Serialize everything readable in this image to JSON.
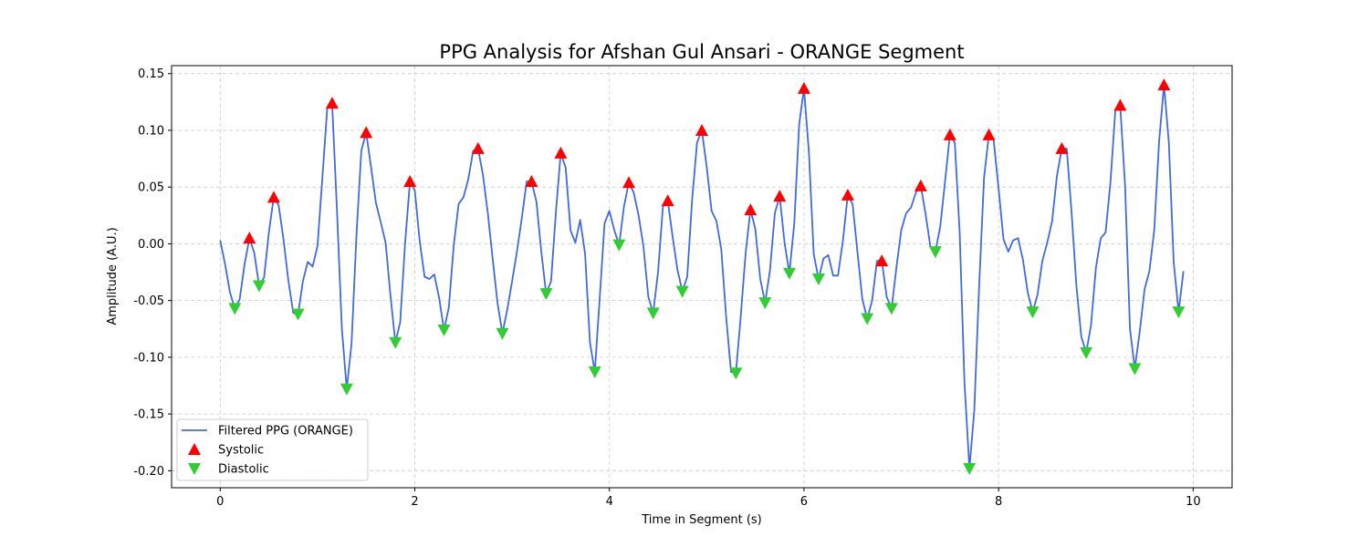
{
  "chart_data": {
    "type": "line",
    "title": "PPG Analysis for Afshan Gul Ansari - ORANGE Segment",
    "xlabel": "Time in Segment (s)",
    "ylabel": "Amplitude (A.U.)",
    "xlim": [
      -0.5,
      10.4
    ],
    "ylim": [
      -0.215,
      0.157
    ],
    "xticks": [
      0,
      2,
      4,
      6,
      8,
      10
    ],
    "yticks": [
      -0.2,
      -0.15,
      -0.1,
      -0.05,
      0.0,
      0.05,
      0.1,
      0.15
    ],
    "grid": true,
    "legend_position": "lower-left",
    "series": [
      {
        "name": "Filtered PPG (ORANGE)",
        "kind": "line",
        "color": "#4169e1",
        "x": [
          0.0,
          0.05,
          0.1,
          0.15,
          0.2,
          0.25,
          0.3,
          0.35,
          0.4,
          0.45,
          0.5,
          0.55,
          0.6,
          0.65,
          0.7,
          0.75,
          0.8,
          0.85,
          0.9,
          0.95,
          1.0,
          1.05,
          1.1,
          1.15,
          1.2,
          1.25,
          1.3,
          1.35,
          1.4,
          1.45,
          1.5,
          1.55,
          1.6,
          1.65,
          1.7,
          1.75,
          1.8,
          1.85,
          1.9,
          1.95,
          2.0,
          2.05,
          2.1,
          2.15,
          2.2,
          2.25,
          2.3,
          2.35,
          2.4,
          2.45,
          2.5,
          2.55,
          2.6,
          2.65,
          2.7,
          2.75,
          2.8,
          2.85,
          2.9,
          2.95,
          3.0,
          3.05,
          3.1,
          3.15,
          3.2,
          3.25,
          3.3,
          3.35,
          3.4,
          3.45,
          3.5,
          3.55,
          3.6,
          3.65,
          3.7,
          3.75,
          3.8,
          3.85,
          3.9,
          3.95,
          4.0,
          4.05,
          4.1,
          4.15,
          4.2,
          4.25,
          4.3,
          4.35,
          4.4,
          4.45,
          4.5,
          4.55,
          4.6,
          4.65,
          4.7,
          4.75,
          4.8,
          4.85,
          4.9,
          4.95,
          5.0,
          5.05,
          5.1,
          5.15,
          5.2,
          5.25,
          5.3,
          5.35,
          5.4,
          5.45,
          5.5,
          5.55,
          5.6,
          5.65,
          5.7,
          5.75,
          5.8,
          5.85,
          5.9,
          5.95,
          6.0,
          6.05,
          6.1,
          6.15,
          6.2,
          6.25,
          6.3,
          6.35,
          6.4,
          6.45,
          6.5,
          6.55,
          6.6,
          6.65,
          6.7,
          6.75,
          6.8,
          6.85,
          6.9,
          6.95,
          7.0,
          7.05,
          7.1,
          7.15,
          7.2,
          7.25,
          7.3,
          7.35,
          7.4,
          7.45,
          7.5,
          7.55,
          7.6,
          7.65,
          7.7,
          7.75,
          7.8,
          7.85,
          7.9,
          7.95,
          8.0,
          8.05,
          8.1,
          8.15,
          8.2,
          8.25,
          8.3,
          8.35,
          8.4,
          8.45,
          8.5,
          8.55,
          8.6,
          8.65,
          8.7,
          8.75,
          8.8,
          8.85,
          8.9,
          8.95,
          9.0,
          9.05,
          9.1,
          9.15,
          9.2,
          9.25,
          9.3,
          9.35,
          9.4,
          9.45,
          9.5,
          9.55,
          9.6,
          9.65,
          9.7,
          9.75,
          9.8,
          9.85,
          9.9
        ],
        "y": [
          0.003,
          -0.018,
          -0.043,
          -0.057,
          -0.049,
          -0.018,
          0.005,
          -0.008,
          -0.037,
          -0.03,
          0.01,
          0.041,
          0.034,
          0.004,
          -0.032,
          -0.061,
          -0.062,
          -0.033,
          -0.016,
          -0.02,
          -0.002,
          0.058,
          0.12,
          0.124,
          0.03,
          -0.075,
          -0.128,
          -0.088,
          0.008,
          0.082,
          0.098,
          0.068,
          0.036,
          0.019,
          0.001,
          -0.046,
          -0.087,
          -0.069,
          0.001,
          0.055,
          0.047,
          0.003,
          -0.029,
          -0.031,
          -0.027,
          -0.048,
          -0.076,
          -0.056,
          -0.001,
          0.035,
          0.041,
          0.057,
          0.082,
          0.084,
          0.061,
          0.027,
          -0.013,
          -0.052,
          -0.079,
          -0.058,
          -0.033,
          -0.007,
          0.023,
          0.055,
          0.055,
          0.037,
          -0.007,
          -0.044,
          -0.033,
          0.028,
          0.08,
          0.067,
          0.012,
          0.001,
          0.021,
          -0.009,
          -0.087,
          -0.113,
          -0.048,
          0.018,
          0.029,
          0.012,
          -0.001,
          0.033,
          0.054,
          0.045,
          0.025,
          -0.002,
          -0.047,
          -0.061,
          -0.025,
          0.033,
          0.038,
          0.006,
          -0.023,
          -0.042,
          -0.029,
          0.038,
          0.089,
          0.1,
          0.068,
          0.029,
          0.02,
          -0.005,
          -0.065,
          -0.113,
          -0.114,
          -0.064,
          -0.008,
          0.03,
          0.013,
          -0.031,
          -0.052,
          -0.024,
          0.027,
          0.042,
          0.001,
          -0.026,
          0.018,
          0.105,
          0.137,
          0.081,
          -0.009,
          -0.031,
          -0.013,
          -0.01,
          -0.028,
          -0.028,
          0.003,
          0.043,
          0.035,
          -0.008,
          -0.049,
          -0.066,
          -0.05,
          -0.015,
          -0.015,
          -0.047,
          -0.057,
          -0.021,
          0.012,
          0.027,
          0.032,
          0.045,
          0.051,
          0.026,
          -0.003,
          -0.007,
          0.015,
          0.055,
          0.096,
          0.089,
          0.01,
          -0.123,
          -0.198,
          -0.147,
          -0.038,
          0.058,
          0.096,
          0.091,
          0.049,
          0.004,
          -0.007,
          0.003,
          0.005,
          -0.014,
          -0.043,
          -0.06,
          -0.045,
          -0.015,
          0.001,
          0.02,
          0.06,
          0.084,
          0.084,
          0.028,
          -0.037,
          -0.082,
          -0.096,
          -0.072,
          -0.021,
          0.005,
          0.01,
          0.054,
          0.118,
          0.122,
          0.052,
          -0.075,
          -0.11,
          -0.078,
          -0.04,
          -0.024,
          0.012,
          0.09,
          0.14,
          0.089,
          -0.016,
          -0.06,
          -0.024
        ]
      },
      {
        "name": "Systolic",
        "kind": "marker-up",
        "color": "#ff0000",
        "x": [
          0.3,
          0.55,
          1.15,
          1.5,
          1.95,
          2.65,
          3.2,
          3.5,
          4.2,
          4.6,
          4.95,
          5.45,
          5.75,
          6.0,
          6.45,
          6.8,
          7.2,
          7.5,
          7.9,
          8.65,
          9.25,
          9.7
        ],
        "y": [
          0.005,
          0.041,
          0.124,
          0.098,
          0.055,
          0.084,
          0.055,
          0.08,
          0.054,
          0.038,
          0.1,
          0.03,
          0.042,
          0.137,
          0.043,
          -0.015,
          0.051,
          0.096,
          0.096,
          0.084,
          0.122,
          0.14
        ]
      },
      {
        "name": "Diastolic",
        "kind": "marker-down",
        "color": "#32cd32",
        "x": [
          0.15,
          0.4,
          0.8,
          1.3,
          1.8,
          2.3,
          2.9,
          3.35,
          3.85,
          4.1,
          4.45,
          4.75,
          5.3,
          5.6,
          5.85,
          6.15,
          6.65,
          6.9,
          7.35,
          7.7,
          8.35,
          8.9,
          9.4,
          9.85
        ],
        "y": [
          -0.057,
          -0.037,
          -0.062,
          -0.128,
          -0.087,
          -0.076,
          -0.079,
          -0.044,
          -0.113,
          -0.001,
          -0.061,
          -0.042,
          -0.114,
          -0.052,
          -0.026,
          -0.031,
          -0.066,
          -0.057,
          -0.007,
          -0.198,
          -0.06,
          -0.096,
          -0.11,
          -0.06
        ]
      }
    ]
  }
}
